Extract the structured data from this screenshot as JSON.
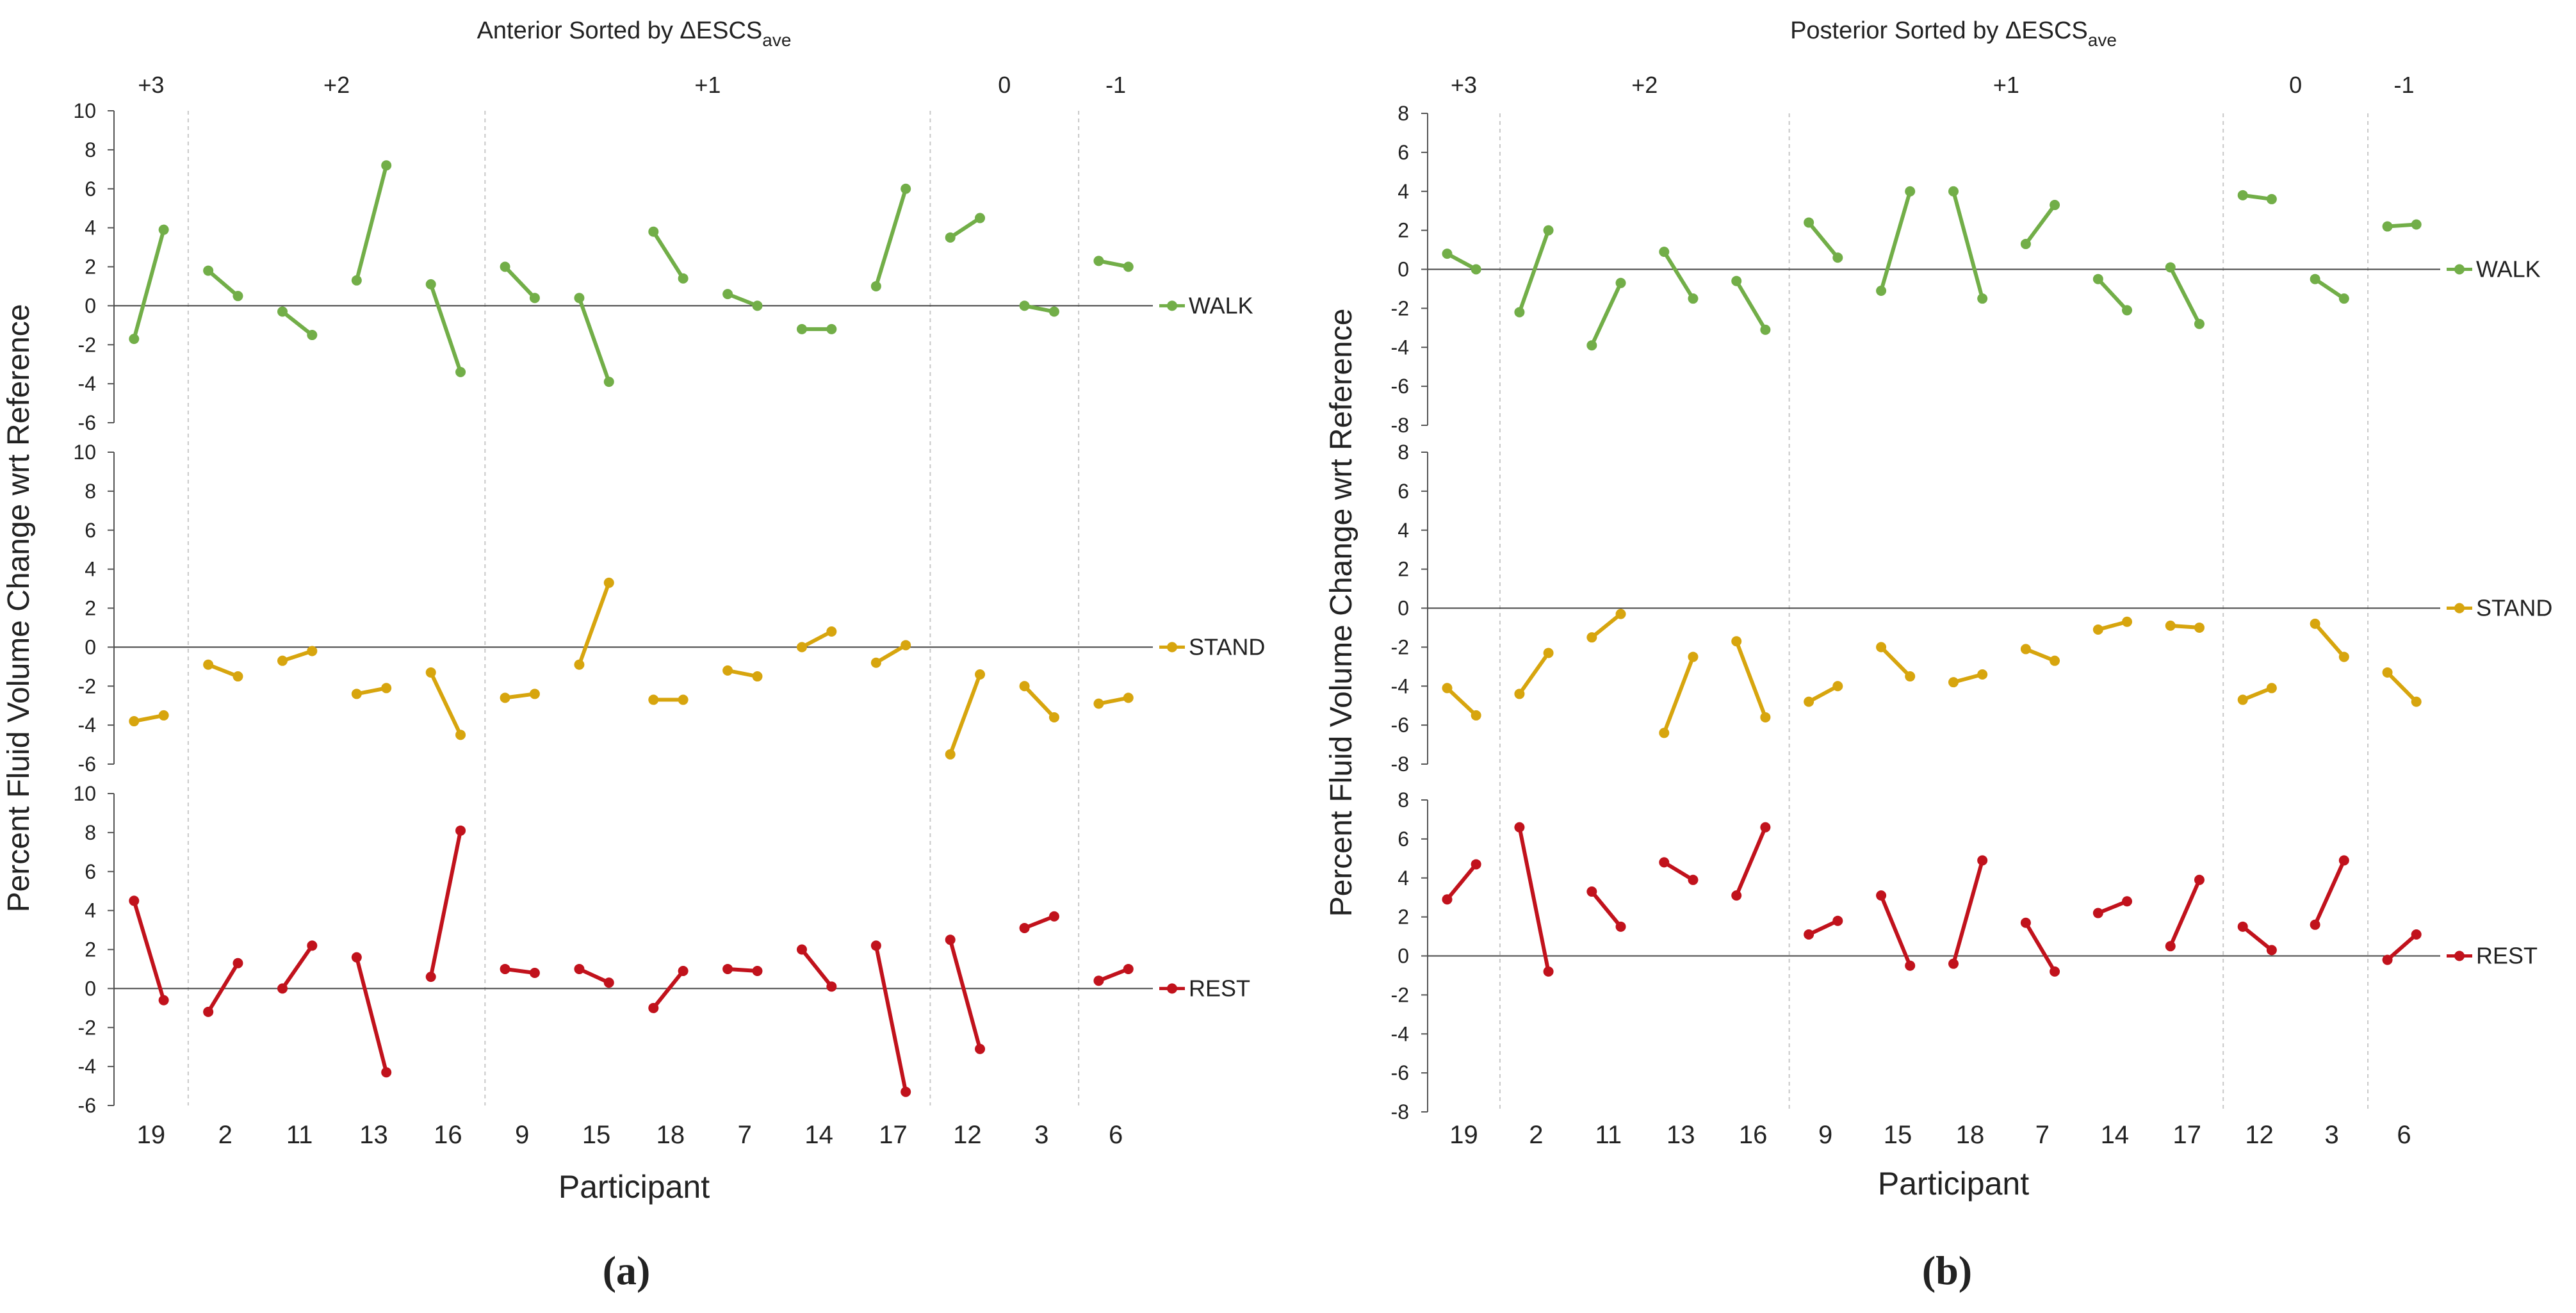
{
  "colors": {
    "WALK": "#72AE48",
    "STAND": "#D7A50E",
    "REST": "#C1121C",
    "axis": "#555555",
    "divider": "#c8c8c8"
  },
  "chart_data": [
    {
      "type": "line",
      "panel_id": "a",
      "caption": "(a)",
      "title_main": "Anterior Sorted by ΔESCS",
      "title_sub": "ave",
      "xlabel": "Participant",
      "ylabel": "Percent Fluid Volume Change wrt Reference",
      "categories": [
        "19",
        "2",
        "11",
        "13",
        "16",
        "9",
        "15",
        "18",
        "7",
        "14",
        "17",
        "12",
        "3",
        "6"
      ],
      "groups": [
        {
          "label": "+3",
          "start": 0,
          "end": 0
        },
        {
          "label": "+2",
          "start": 1,
          "end": 4
        },
        {
          "label": "+1",
          "start": 5,
          "end": 10
        },
        {
          "label": "0",
          "start": 11,
          "end": 12
        },
        {
          "label": "-1",
          "start": 13,
          "end": 13
        }
      ],
      "subplots": [
        {
          "name": "WALK",
          "ylim": [
            -6,
            10
          ],
          "ticks": [
            10,
            8,
            6,
            4,
            2,
            0,
            -2,
            -4,
            -6
          ],
          "pairs": [
            [
              -1.7,
              3.9
            ],
            [
              1.8,
              0.5
            ],
            [
              -0.3,
              -1.5
            ],
            [
              1.3,
              7.2
            ],
            [
              1.1,
              -3.4
            ],
            [
              2.0,
              0.4
            ],
            [
              0.4,
              -3.9
            ],
            [
              3.8,
              1.4
            ],
            [
              0.6,
              0.0
            ],
            [
              -1.2,
              -1.2
            ],
            [
              1.0,
              6.0
            ],
            [
              3.5,
              4.5
            ],
            [
              0.0,
              -0.3
            ],
            [
              2.3,
              2.0
            ]
          ]
        },
        {
          "name": "STAND",
          "ylim": [
            -6,
            10
          ],
          "ticks": [
            10,
            8,
            6,
            4,
            2,
            0,
            -2,
            -4,
            -6
          ],
          "pairs": [
            [
              -3.8,
              -3.5
            ],
            [
              -0.9,
              -1.5
            ],
            [
              -0.7,
              -0.2
            ],
            [
              -2.4,
              -2.1
            ],
            [
              -1.3,
              -4.5
            ],
            [
              -2.6,
              -2.4
            ],
            [
              -0.9,
              3.3
            ],
            [
              -2.7,
              -2.7
            ],
            [
              -1.2,
              -1.5
            ],
            [
              0.0,
              0.8
            ],
            [
              -0.8,
              0.1
            ],
            [
              -5.5,
              -1.4
            ],
            [
              -2.0,
              -3.6
            ],
            [
              -2.9,
              -2.6
            ]
          ]
        },
        {
          "name": "REST",
          "ylim": [
            -6,
            10
          ],
          "ticks": [
            10,
            8,
            6,
            4,
            2,
            0,
            -2,
            -4,
            -6
          ],
          "pairs": [
            [
              4.5,
              -0.6
            ],
            [
              -1.2,
              1.3
            ],
            [
              0.0,
              2.2
            ],
            [
              1.6,
              -4.3
            ],
            [
              0.6,
              8.1
            ],
            [
              1.0,
              0.8
            ],
            [
              1.0,
              0.3
            ],
            [
              -1.0,
              0.9
            ],
            [
              1.0,
              0.9
            ],
            [
              2.0,
              0.1
            ],
            [
              2.2,
              -5.3
            ],
            [
              2.5,
              -3.1
            ],
            [
              3.1,
              3.7
            ],
            [
              0.4,
              1.0
            ]
          ]
        }
      ]
    },
    {
      "type": "line",
      "panel_id": "b",
      "caption": "(b)",
      "title_main": "Posterior Sorted by ΔESCS",
      "title_sub": "ave",
      "xlabel": "Participant",
      "ylabel": "Percent Fluid Volume Change wrt Reference",
      "categories": [
        "19",
        "2",
        "11",
        "13",
        "16",
        "9",
        "15",
        "18",
        "7",
        "14",
        "17",
        "12",
        "3",
        "6"
      ],
      "groups": [
        {
          "label": "+3",
          "start": 0,
          "end": 0
        },
        {
          "label": "+2",
          "start": 1,
          "end": 4
        },
        {
          "label": "+1",
          "start": 5,
          "end": 10
        },
        {
          "label": "0",
          "start": 11,
          "end": 12
        },
        {
          "label": "-1",
          "start": 13,
          "end": 13
        }
      ],
      "subplots": [
        {
          "name": "WALK",
          "ylim": [
            -8,
            8
          ],
          "ticks": [
            8,
            6,
            4,
            2,
            0,
            -2,
            -4,
            -6,
            -8
          ],
          "pairs": [
            [
              0.8,
              0.0
            ],
            [
              -2.2,
              2.0
            ],
            [
              -3.9,
              -0.7
            ],
            [
              0.9,
              -1.5
            ],
            [
              -0.6,
              -3.1
            ],
            [
              2.4,
              0.6
            ],
            [
              -1.1,
              4.0
            ],
            [
              4.0,
              -1.5
            ],
            [
              1.3,
              3.3
            ],
            [
              -0.5,
              -2.1
            ],
            [
              0.1,
              -2.8
            ],
            [
              3.8,
              3.6
            ],
            [
              -0.5,
              -1.5
            ],
            [
              2.2,
              2.3
            ]
          ]
        },
        {
          "name": "STAND",
          "ylim": [
            -8,
            8
          ],
          "ticks": [
            8,
            6,
            4,
            2,
            0,
            -2,
            -4,
            -6,
            -8
          ],
          "pairs": [
            [
              -4.1,
              -5.5
            ],
            [
              -4.4,
              -2.3
            ],
            [
              -1.5,
              -0.3
            ],
            [
              -6.4,
              -2.5
            ],
            [
              -1.7,
              -5.6
            ],
            [
              -4.8,
              -4.0
            ],
            [
              -2.0,
              -3.5
            ],
            [
              -3.8,
              -3.4
            ],
            [
              -2.1,
              -2.7
            ],
            [
              -1.1,
              -0.7
            ],
            [
              -0.9,
              -1.0
            ],
            [
              -4.7,
              -4.1
            ],
            [
              -0.8,
              -2.5
            ],
            [
              -3.3,
              -4.8
            ]
          ]
        },
        {
          "name": "REST",
          "ylim": [
            -8,
            8
          ],
          "ticks": [
            8,
            6,
            4,
            2,
            0,
            -2,
            -4,
            -6,
            -8
          ],
          "pairs": [
            [
              2.9,
              4.7
            ],
            [
              6.6,
              -0.8
            ],
            [
              3.3,
              1.5
            ],
            [
              4.8,
              3.9
            ],
            [
              3.1,
              6.6
            ],
            [
              1.1,
              1.8
            ],
            [
              3.1,
              -0.5
            ],
            [
              -0.4,
              4.9
            ],
            [
              1.7,
              -0.8
            ],
            [
              2.2,
              2.8
            ],
            [
              0.5,
              3.9
            ],
            [
              1.5,
              0.3
            ],
            [
              1.6,
              4.9
            ],
            [
              -0.2,
              1.1
            ]
          ]
        }
      ]
    }
  ]
}
